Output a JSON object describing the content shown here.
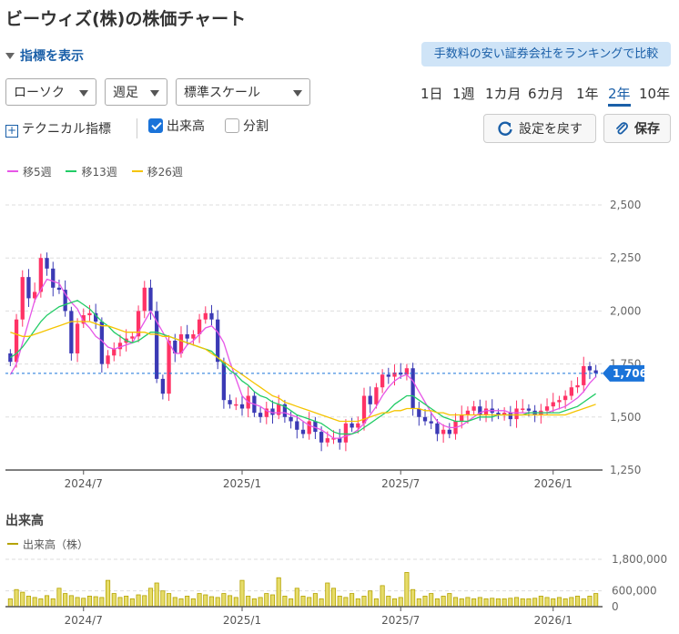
{
  "title": "ビーウィズ(株)の株価チャート",
  "indicator_toggle": "指標を表示",
  "ranking_link": "手数料の安い証券会社をランキングで比較",
  "selects": {
    "chart_type": "ローソク",
    "interval": "週足",
    "scale": "標準スケール"
  },
  "periods": [
    "1日",
    "1週",
    "1カ月",
    "6カ月",
    "1年",
    "2年",
    "10年"
  ],
  "active_period": "2年",
  "technical": "テクニカル指標",
  "volume_checkbox": "出来高",
  "split_checkbox": "分割",
  "reset_button": "設定を戻す",
  "save_button": "保存",
  "volume_section": {
    "title": "出来高",
    "legend": "出来高（株）"
  },
  "colors": {
    "up": "#ff3366",
    "down": "#3b3ab5",
    "ma5": "#e756e7",
    "ma13": "#22cc66",
    "ma26": "#f5c400",
    "volume": "#b5a300",
    "current_price": "#1a73d9"
  },
  "chart_data": {
    "type": "candlestick",
    "x_ticks": [
      "2024/7",
      "2025/1",
      "2025/7",
      "2026/1"
    ],
    "y_ticks": [
      2500,
      2250,
      2000,
      1750,
      1500,
      1250
    ],
    "ylim": [
      1250,
      2500
    ],
    "current_price": 1706,
    "current_price_label": "1,706",
    "legend": [
      "移5週",
      "移13週",
      "移26週"
    ],
    "closes": [
      1760,
      1960,
      2160,
      2060,
      2090,
      2250,
      2200,
      2110,
      2100,
      2000,
      1800,
      1940,
      1980,
      1990,
      1950,
      1750,
      1790,
      1820,
      1850,
      1870,
      1880,
      2000,
      2110,
      2000,
      1680,
      1610,
      1860,
      1800,
      1890,
      1870,
      1890,
      1960,
      1990,
      1960,
      1760,
      1580,
      1560,
      1560,
      1540,
      1600,
      1520,
      1500,
      1540,
      1510,
      1560,
      1500,
      1480,
      1440,
      1420,
      1480,
      1430,
      1380,
      1400,
      1400,
      1380,
      1470,
      1450,
      1470,
      1600,
      1560,
      1640,
      1700,
      1690,
      1710,
      1700,
      1730,
      1540,
      1500,
      1480,
      1470,
      1420,
      1440,
      1420,
      1480,
      1510,
      1530,
      1550,
      1510,
      1540,
      1520,
      1510,
      1520,
      1490,
      1540,
      1540,
      1530,
      1510,
      1530,
      1550,
      1570,
      1580,
      1600,
      1640,
      1650,
      1740,
      1720,
      1706
    ],
    "opens": [
      1800,
      1760,
      1960,
      2160,
      2060,
      2090,
      2250,
      2200,
      2110,
      2100,
      2000,
      1800,
      1940,
      1980,
      1990,
      1950,
      1750,
      1790,
      1820,
      1850,
      1870,
      1880,
      2000,
      2110,
      2000,
      1680,
      1610,
      1860,
      1800,
      1890,
      1870,
      1890,
      1960,
      1990,
      1960,
      1760,
      1580,
      1560,
      1560,
      1540,
      1600,
      1520,
      1500,
      1540,
      1510,
      1560,
      1500,
      1480,
      1440,
      1420,
      1480,
      1430,
      1380,
      1400,
      1400,
      1380,
      1470,
      1450,
      1470,
      1600,
      1560,
      1640,
      1700,
      1690,
      1710,
      1700,
      1730,
      1540,
      1500,
      1480,
      1470,
      1420,
      1440,
      1420,
      1480,
      1510,
      1530,
      1550,
      1510,
      1540,
      1520,
      1510,
      1520,
      1490,
      1540,
      1540,
      1530,
      1510,
      1530,
      1550,
      1570,
      1580,
      1600,
      1640,
      1650,
      1740,
      1720
    ],
    "ma5": [
      1700,
      1750,
      1850,
      1950,
      2050,
      2100,
      2150,
      2140,
      2130,
      2080,
      2040,
      2010,
      1950,
      1920,
      1880,
      1860,
      1830,
      1820,
      1830,
      1840,
      1850,
      1900,
      1950,
      2000,
      1950,
      1900,
      1850,
      1800,
      1800,
      1840,
      1860,
      1890,
      1920,
      1930,
      1900,
      1850,
      1760,
      1680,
      1600,
      1570,
      1560,
      1550,
      1530,
      1520,
      1520,
      1520,
      1510,
      1500,
      1480,
      1460,
      1450,
      1440,
      1420,
      1400,
      1400,
      1410,
      1420,
      1440,
      1470,
      1510,
      1550,
      1600,
      1640,
      1670,
      1690,
      1700,
      1670,
      1620,
      1570,
      1520,
      1480,
      1460,
      1450,
      1450,
      1460,
      1480,
      1500,
      1520,
      1530,
      1530,
      1530,
      1530,
      1520,
      1520,
      1520,
      1520,
      1520,
      1520,
      1520,
      1530,
      1540,
      1550,
      1570,
      1590,
      1620,
      1660,
      1690
    ],
    "ma13": [
      1780,
      1800,
      1830,
      1870,
      1910,
      1950,
      1980,
      2000,
      2020,
      2030,
      2040,
      2050,
      2030,
      2010,
      1980,
      1950,
      1930,
      1900,
      1880,
      1860,
      1850,
      1860,
      1880,
      1900,
      1900,
      1890,
      1880,
      1870,
      1860,
      1850,
      1840,
      1830,
      1820,
      1810,
      1780,
      1750,
      1720,
      1700,
      1670,
      1650,
      1620,
      1600,
      1590,
      1570,
      1560,
      1550,
      1530,
      1510,
      1500,
      1490,
      1480,
      1470,
      1450,
      1430,
      1420,
      1420,
      1420,
      1430,
      1450,
      1470,
      1490,
      1510,
      1530,
      1560,
      1580,
      1600,
      1600,
      1580,
      1560,
      1540,
      1520,
      1500,
      1490,
      1480,
      1480,
      1480,
      1490,
      1500,
      1500,
      1500,
      1510,
      1510,
      1510,
      1510,
      1510,
      1520,
      1520,
      1520,
      1520,
      1520,
      1520,
      1530,
      1540,
      1550,
      1570,
      1590,
      1610
    ],
    "ma26": [
      1900,
      1890,
      1880,
      1880,
      1890,
      1900,
      1910,
      1920,
      1930,
      1940,
      1950,
      1950,
      1950,
      1950,
      1940,
      1930,
      1930,
      1920,
      1910,
      1900,
      1900,
      1900,
      1900,
      1890,
      1890,
      1880,
      1880,
      1870,
      1860,
      1850,
      1840,
      1830,
      1820,
      1800,
      1780,
      1760,
      1740,
      1720,
      1700,
      1680,
      1660,
      1640,
      1620,
      1600,
      1590,
      1570,
      1560,
      1550,
      1540,
      1530,
      1520,
      1510,
      1500,
      1490,
      1480,
      1480,
      1480,
      1480,
      1490,
      1500,
      1510,
      1520,
      1520,
      1530,
      1530,
      1540,
      1540,
      1540,
      1530,
      1530,
      1520,
      1520,
      1510,
      1510,
      1510,
      1510,
      1510,
      1510,
      1510,
      1510,
      1510,
      1510,
      1510,
      1510,
      1510,
      1510,
      1510,
      1510,
      1510,
      1510,
      1510,
      1510,
      1520,
      1530,
      1540,
      1550,
      1560
    ],
    "volume_ticks": [
      1800000,
      600000,
      0
    ],
    "volume_tick_labels": [
      "1,800,000",
      "600,000",
      "0"
    ],
    "volume": [
      300000,
      650000,
      550000,
      400000,
      350000,
      300000,
      420000,
      300000,
      700000,
      500000,
      420000,
      350000,
      320000,
      400000,
      380000,
      350000,
      1000000,
      500000,
      350000,
      400000,
      300000,
      450000,
      420000,
      700000,
      900000,
      600000,
      500000,
      350000,
      300000,
      400000,
      300000,
      500000,
      450000,
      380000,
      350000,
      500000,
      420000,
      350000,
      1000000,
      400000,
      300000,
      350000,
      500000,
      450000,
      1100000,
      400000,
      300000,
      700000,
      400000,
      350000,
      500000,
      300000,
      900000,
      700000,
      400000,
      350000,
      500000,
      300000,
      400000,
      600000,
      300000,
      800000,
      400000,
      300000,
      350000,
      1300000,
      650000,
      300000,
      400000,
      500000,
      300000,
      400000,
      500000,
      350000,
      300000,
      350000,
      300000,
      350000,
      300000,
      320000,
      300000,
      300000,
      320000,
      350000,
      300000,
      300000,
      320000,
      400000,
      350000,
      300000,
      350000,
      300000,
      350000,
      400000,
      300000,
      400000,
      500000
    ]
  }
}
